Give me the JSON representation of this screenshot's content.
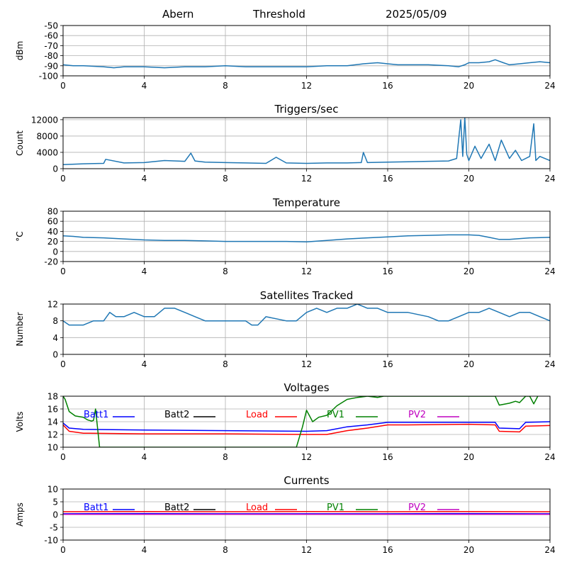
{
  "header": {
    "station": "Abern",
    "mode": "Threshold",
    "date": "2025/05/09"
  },
  "colors": {
    "line": "#1f77b4",
    "batt1": "#0000ff",
    "batt2": "#000000",
    "load": "#ff0000",
    "pv1": "#008000",
    "pv2": "#bf00bf",
    "grid": "#b0b0b0"
  },
  "chart_data": [
    {
      "id": "rssi",
      "type": "line",
      "title": "",
      "xlabel": "",
      "ylabel": "dBm",
      "xlim": [
        0,
        24
      ],
      "ylim": [
        -100,
        -50
      ],
      "xticks": [
        0,
        4,
        8,
        12,
        16,
        20,
        24
      ],
      "yticks": [
        -100,
        -90,
        -80,
        -70,
        -60,
        -50
      ],
      "grid": true,
      "series": [
        {
          "x": [
            0,
            0.5,
            1,
            2,
            2.5,
            3,
            4,
            5,
            6,
            7,
            8,
            9,
            10,
            11,
            12,
            13,
            14,
            14.8,
            15.5,
            16,
            16.5,
            17,
            18,
            19,
            19.5,
            19.8,
            20,
            20.5,
            21,
            21.3,
            21.7,
            22,
            22.5,
            23,
            23.5,
            24
          ],
          "y": [
            -89,
            -90,
            -90,
            -91,
            -92,
            -91,
            -91,
            -92,
            -91,
            -91,
            -90,
            -91,
            -91,
            -91,
            -91,
            -90,
            -90,
            -88,
            -87,
            -88,
            -89,
            -89,
            -89,
            -90,
            -91,
            -89,
            -87,
            -87,
            -86,
            -84,
            -87,
            -89,
            -88,
            -87,
            -86,
            -87
          ]
        }
      ]
    },
    {
      "id": "triggers",
      "type": "line",
      "title": "Triggers/sec",
      "xlabel": "",
      "ylabel": "Count",
      "xlim": [
        0,
        24
      ],
      "ylim": [
        0,
        12500
      ],
      "xticks": [
        0,
        4,
        8,
        12,
        16,
        20,
        24
      ],
      "yticks": [
        0,
        4000,
        8000,
        12000
      ],
      "grid": true,
      "series": [
        {
          "x": [
            0,
            1,
            2,
            2.1,
            3,
            4,
            5,
            6,
            6.3,
            6.5,
            7,
            8,
            9,
            10,
            10.5,
            11,
            12,
            13,
            14,
            14.7,
            14.8,
            15,
            16,
            17,
            18,
            19,
            19.4,
            19.6,
            19.7,
            19.8,
            19.9,
            20,
            20.3,
            20.6,
            21,
            21.3,
            21.6,
            22,
            22.3,
            22.6,
            23,
            23.2,
            23.3,
            23.5,
            24
          ],
          "y": [
            1000,
            1200,
            1300,
            2300,
            1400,
            1500,
            2000,
            1800,
            3800,
            1900,
            1600,
            1500,
            1400,
            1300,
            2800,
            1400,
            1300,
            1400,
            1400,
            1500,
            4000,
            1500,
            1600,
            1700,
            1800,
            1900,
            2500,
            12000,
            3000,
            12500,
            3500,
            2000,
            5500,
            2500,
            6000,
            2000,
            7000,
            2500,
            4500,
            2000,
            3000,
            11000,
            2000,
            3000,
            2000
          ]
        }
      ]
    },
    {
      "id": "temperature",
      "type": "line",
      "title": "Temperature",
      "xlabel": "",
      "ylabel": "°C",
      "xlim": [
        0,
        24
      ],
      "ylim": [
        -20,
        80
      ],
      "xticks": [
        0,
        4,
        8,
        12,
        16,
        20,
        24
      ],
      "yticks": [
        -20,
        0,
        20,
        40,
        60,
        80
      ],
      "grid": true,
      "series": [
        {
          "x": [
            0,
            0.5,
            1,
            2,
            3,
            4,
            5,
            6,
            7,
            8,
            9,
            10,
            11,
            12,
            13,
            14,
            15,
            16,
            17,
            18,
            19,
            20,
            20.5,
            21,
            21.5,
            22,
            23,
            24
          ],
          "y": [
            31,
            30,
            28,
            27,
            25,
            23,
            22,
            22,
            21,
            20,
            20,
            20,
            20,
            19,
            22,
            25,
            27,
            29,
            31,
            32,
            33,
            33,
            32,
            28,
            24,
            24,
            27,
            28
          ]
        }
      ]
    },
    {
      "id": "satellites",
      "type": "line",
      "title": "Satellites Tracked",
      "xlabel": "",
      "ylabel": "Number",
      "xlim": [
        0,
        24
      ],
      "ylim": [
        0,
        12
      ],
      "xticks": [
        0,
        4,
        8,
        12,
        16,
        20,
        24
      ],
      "yticks": [
        0,
        4,
        8,
        12
      ],
      "grid": true,
      "series": [
        {
          "x": [
            0,
            0.3,
            1,
            1.5,
            2,
            2.3,
            2.6,
            3,
            3.5,
            4,
            4.5,
            5,
            5.5,
            6,
            6.5,
            7,
            7.5,
            8,
            9,
            9.3,
            9.6,
            10,
            11,
            11.5,
            12,
            12.5,
            13,
            13.5,
            14,
            14.5,
            15,
            15.5,
            16,
            17,
            18,
            18.5,
            19,
            19.5,
            20,
            20.5,
            21,
            21.5,
            22,
            22.5,
            23,
            23.5,
            24
          ],
          "y": [
            8,
            7,
            7,
            8,
            8,
            10,
            9,
            9,
            10,
            9,
            9,
            11,
            11,
            10,
            9,
            8,
            8,
            8,
            8,
            7,
            7,
            9,
            8,
            8,
            10,
            11,
            10,
            11,
            11,
            12,
            11,
            11,
            10,
            10,
            9,
            8,
            8,
            9,
            10,
            10,
            11,
            10,
            9,
            10,
            10,
            9,
            8
          ]
        }
      ]
    },
    {
      "id": "voltages",
      "type": "line",
      "title": "Voltages",
      "xlabel": "",
      "ylabel": "Volts",
      "xlim": [
        0,
        24
      ],
      "ylim": [
        10,
        18
      ],
      "xticks": [
        0,
        4,
        8,
        12,
        16,
        20,
        24
      ],
      "yticks": [
        10,
        12,
        14,
        16,
        18
      ],
      "grid": true,
      "series": [
        {
          "name": "Batt1",
          "x": [
            0,
            0.3,
            1,
            4,
            8,
            12,
            13,
            14,
            15,
            16,
            17,
            20,
            21.3,
            21.5,
            22.5,
            22.8,
            24
          ],
          "y": [
            13.8,
            13.0,
            12.8,
            12.7,
            12.6,
            12.5,
            12.6,
            13.2,
            13.5,
            13.9,
            13.9,
            13.9,
            13.9,
            13.0,
            12.9,
            13.9,
            14.0
          ]
        },
        {
          "name": "Batt2",
          "x": [],
          "y": []
        },
        {
          "name": "Load",
          "x": [
            0,
            0.3,
            1,
            4,
            8,
            12,
            13,
            14,
            15,
            16,
            17,
            20,
            21.3,
            21.5,
            22.5,
            22.8,
            24
          ],
          "y": [
            13.5,
            12.5,
            12.2,
            12.1,
            12.1,
            12.0,
            12.0,
            12.6,
            13.0,
            13.5,
            13.5,
            13.6,
            13.5,
            12.5,
            12.4,
            13.3,
            13.4
          ]
        },
        {
          "name": "PV1",
          "x": [
            0,
            0.1,
            0.3,
            0.6,
            1,
            1.2,
            1.4,
            1.5,
            1.6,
            1.8,
            11.5,
            11.8,
            12,
            12.3,
            12.6,
            13,
            13.5,
            14,
            14.5,
            15,
            15.5,
            15.8,
            16,
            16.2,
            21.3,
            21.5,
            22,
            22.3,
            22.5,
            22.8,
            23.0,
            23.2,
            23.4
          ],
          "y": [
            18,
            17.5,
            15.6,
            14.9,
            14.7,
            14.3,
            14.1,
            14.2,
            16.0,
            10,
            10,
            13.2,
            15.8,
            14.0,
            14.7,
            15.0,
            16.5,
            17.5,
            17.8,
            18,
            17.8,
            18,
            18,
            18,
            18,
            16.6,
            16.9,
            17.2,
            17.0,
            18,
            18,
            16.8,
            18
          ]
        },
        {
          "name": "PV2",
          "x": [],
          "y": []
        }
      ]
    },
    {
      "id": "currents",
      "type": "line",
      "title": "Currents",
      "xlabel": "",
      "ylabel": "Amps",
      "xlim": [
        0,
        24
      ],
      "ylim": [
        -10,
        10
      ],
      "xticks": [
        0,
        4,
        8,
        12,
        16,
        20,
        24
      ],
      "yticks": [
        -10,
        -5,
        0,
        5,
        10
      ],
      "grid": true,
      "series": [
        {
          "name": "Batt1",
          "x": [
            0,
            4,
            8,
            12,
            16,
            20,
            24
          ],
          "y": [
            0.3,
            0.4,
            0.3,
            0.3,
            0.3,
            0.4,
            0.3
          ]
        },
        {
          "name": "Batt2",
          "x": [],
          "y": []
        },
        {
          "name": "Load",
          "x": [
            0,
            4,
            8,
            12,
            16,
            20,
            24
          ],
          "y": [
            1.1,
            1.2,
            1.1,
            1.2,
            1.1,
            1.2,
            1.1
          ]
        },
        {
          "name": "PV1",
          "x": [],
          "y": []
        },
        {
          "name": "PV2",
          "x": [
            0,
            4,
            8,
            12,
            16,
            20,
            24
          ],
          "y": [
            0.1,
            0.1,
            0.1,
            0.1,
            0.1,
            0.1,
            0.1
          ]
        }
      ]
    }
  ]
}
